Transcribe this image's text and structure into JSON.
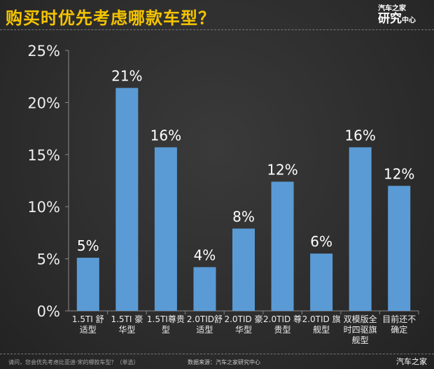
{
  "title": "购买时优先考虑哪款车型？",
  "logo": {
    "line1": "汽车之家",
    "line2": "研究",
    "line2_small": "中心"
  },
  "footer": {
    "question": "请问，您会优先考虑比亚迪·宋的哪款车型？（单选）",
    "source": "数据来源：汽车之家研究中心",
    "brand": "汽车之家"
  },
  "chart_data": {
    "type": "bar",
    "categories": [
      "1.5TI 舒适型",
      "1.5TI 豪华型",
      "1.5TI尊贵型",
      "2.0TID舒适型",
      "2.0TID 豪华型",
      "2.0TID 尊贵型",
      "2.0TID 旗舰型",
      "双模版全时四驱旗舰型",
      "目前还不确定"
    ],
    "values": [
      5.1,
      21.4,
      15.7,
      4.2,
      7.9,
      12.4,
      5.5,
      15.7,
      12.0
    ],
    "data_labels": [
      "5%",
      "21%",
      "16%",
      "4%",
      "8%",
      "12%",
      "6%",
      "16%",
      "12%"
    ],
    "yticks": [
      "0%",
      "5%",
      "10%",
      "15%",
      "20%",
      "25%"
    ],
    "ylim": [
      0,
      25
    ],
    "grid": false,
    "bar_color": "#5b9bd5",
    "title_color": "#f5c400"
  }
}
